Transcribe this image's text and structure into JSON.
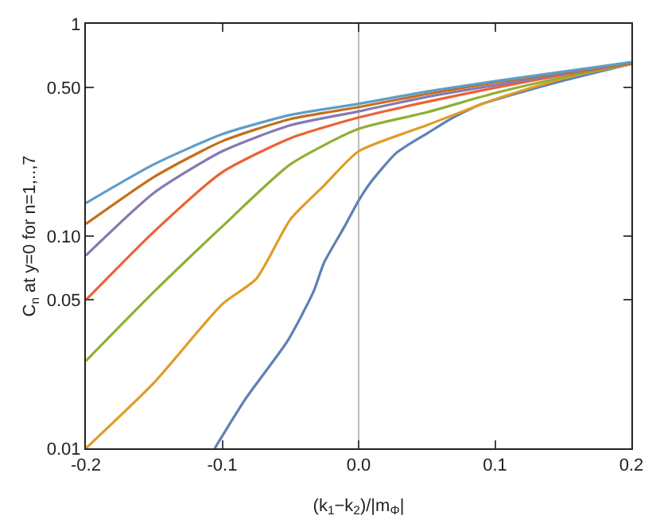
{
  "chart_data": {
    "type": "line",
    "xlabel": "(k$_{1}$−k$_{2}$)/|m$_{Φ}$|",
    "ylabel": "C$_{n}$ at y=0 for n=1,..,7",
    "x": [
      -0.2,
      -0.15,
      -0.1,
      -0.05,
      0,
      0.05,
      0.1,
      0.15,
      0.2
    ],
    "series": [
      {
        "color": "#5e81b5",
        "x": [
          -0.1055,
          -0.0827,
          -0.0522,
          -0.0331,
          -0.0255,
          -0.0103,
          0,
          0.0088,
          0.0278,
          0.0507,
          0.066,
          0.089,
          0.108,
          0.15,
          0.2
        ],
        "values": [
          0.01,
          0.0172,
          0.032,
          0.0547,
          0.0746,
          0.111,
          0.147,
          0.179,
          0.247,
          0.306,
          0.352,
          0.417,
          0.454,
          0.54,
          0.648
        ]
      },
      {
        "color": "#e19c24",
        "x": [
          -0.2,
          -0.15,
          -0.1,
          -0.075,
          -0.05,
          -0.025,
          0,
          0.05,
          0.1,
          0.15,
          0.2
        ],
        "values": [
          0.01,
          0.0204,
          0.0478,
          0.063,
          0.12,
          0.174,
          0.251,
          0.333,
          0.441,
          0.553,
          0.648
        ]
      },
      {
        "color": "#8fb032",
        "values": [
          0.0258,
          0.0547,
          0.111,
          0.218,
          0.32,
          0.383,
          0.472,
          0.56,
          0.648
        ]
      },
      {
        "color": "#eb6235",
        "values": [
          0.05,
          0.105,
          0.2,
          0.289,
          0.362,
          0.429,
          0.5,
          0.575,
          0.65
        ]
      },
      {
        "color": "#8778b3",
        "values": [
          0.081,
          0.16,
          0.251,
          0.333,
          0.387,
          0.453,
          0.514,
          0.582,
          0.653
        ]
      },
      {
        "color": "#c56e1a",
        "values": [
          0.114,
          0.19,
          0.28,
          0.356,
          0.405,
          0.467,
          0.53,
          0.59,
          0.655
        ]
      },
      {
        "color": "#5d9ec7",
        "values": [
          0.143,
          0.218,
          0.302,
          0.372,
          0.42,
          0.48,
          0.537,
          0.595,
          0.66
        ]
      }
    ],
    "xlim": [
      -0.2,
      0.2
    ],
    "xticks": [
      -0.2,
      -0.1,
      {
        "value": 0,
        "label": "0.0"
      },
      0.1,
      0.2
    ],
    "ylim": [
      0.01,
      1
    ],
    "yticks": [
      0.01,
      0.05,
      {
        "value": 0.1,
        "label": "0.10"
      },
      {
        "value": 0.5,
        "label": "0.50"
      },
      1
    ],
    "log": "y",
    "ref_lines": [
      {
        "axis": "x",
        "value": 0,
        "color": "#bbbbbb"
      }
    ]
  }
}
